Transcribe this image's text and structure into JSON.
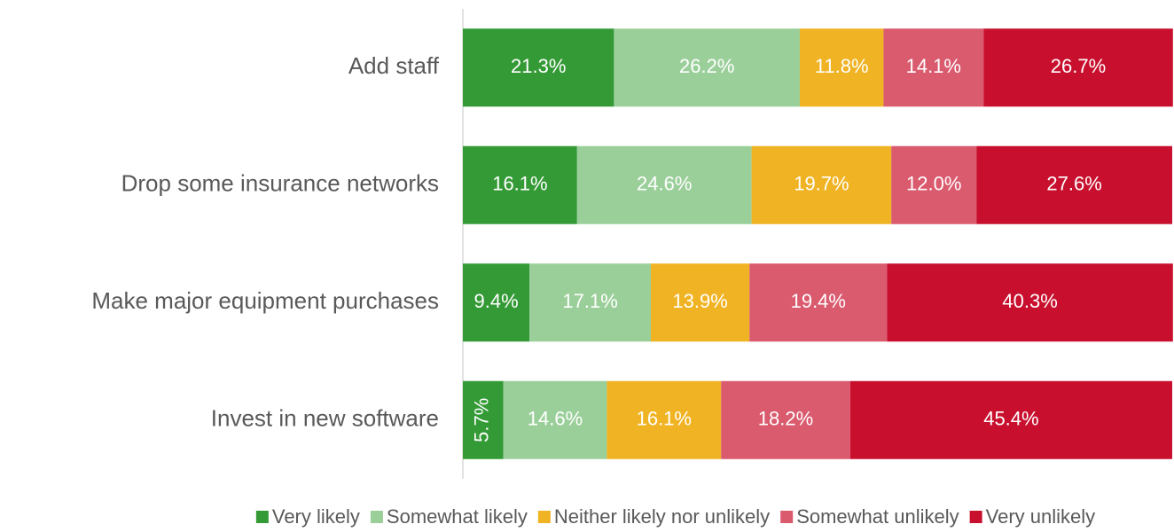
{
  "chart_data": {
    "type": "stacked-bar-horizontal",
    "categories": [
      "Add staff",
      "Drop some insurance networks",
      "Make major equipment purchases",
      "Invest in new software"
    ],
    "xlim": [
      0,
      100
    ],
    "legend": "bottom",
    "series": [
      {
        "name": "Very likely",
        "color": "#349a36",
        "values": [
          21.3,
          16.1,
          9.4,
          5.7
        ],
        "value_labels": [
          "21.3%",
          "16.1%",
          "9.4%",
          "5.7%"
        ]
      },
      {
        "name": "Somewhat likely",
        "color": "#9bcf9a",
        "values": [
          26.2,
          24.6,
          17.1,
          14.6
        ],
        "value_labels": [
          "26.2%",
          "24.6%",
          "17.1%",
          "14.6%"
        ]
      },
      {
        "name": "Neither likely nor unlikely",
        "color": "#f0b323",
        "values": [
          11.8,
          19.7,
          13.9,
          16.1
        ],
        "value_labels": [
          "11.8%",
          "19.7%",
          "13.9%",
          "16.1%"
        ]
      },
      {
        "name": "Somewhat unlikely",
        "color": "#da5a6e",
        "values": [
          14.1,
          12.0,
          19.4,
          18.2
        ],
        "value_labels": [
          "14.1%",
          "12.0%",
          "19.4%",
          "18.2%"
        ]
      },
      {
        "name": "Very unlikely",
        "color": "#c8102e",
        "values": [
          26.7,
          27.6,
          40.3,
          45.4
        ],
        "value_labels": [
          "26.7%",
          "27.6%",
          "40.3%",
          "45.4%"
        ]
      }
    ]
  }
}
